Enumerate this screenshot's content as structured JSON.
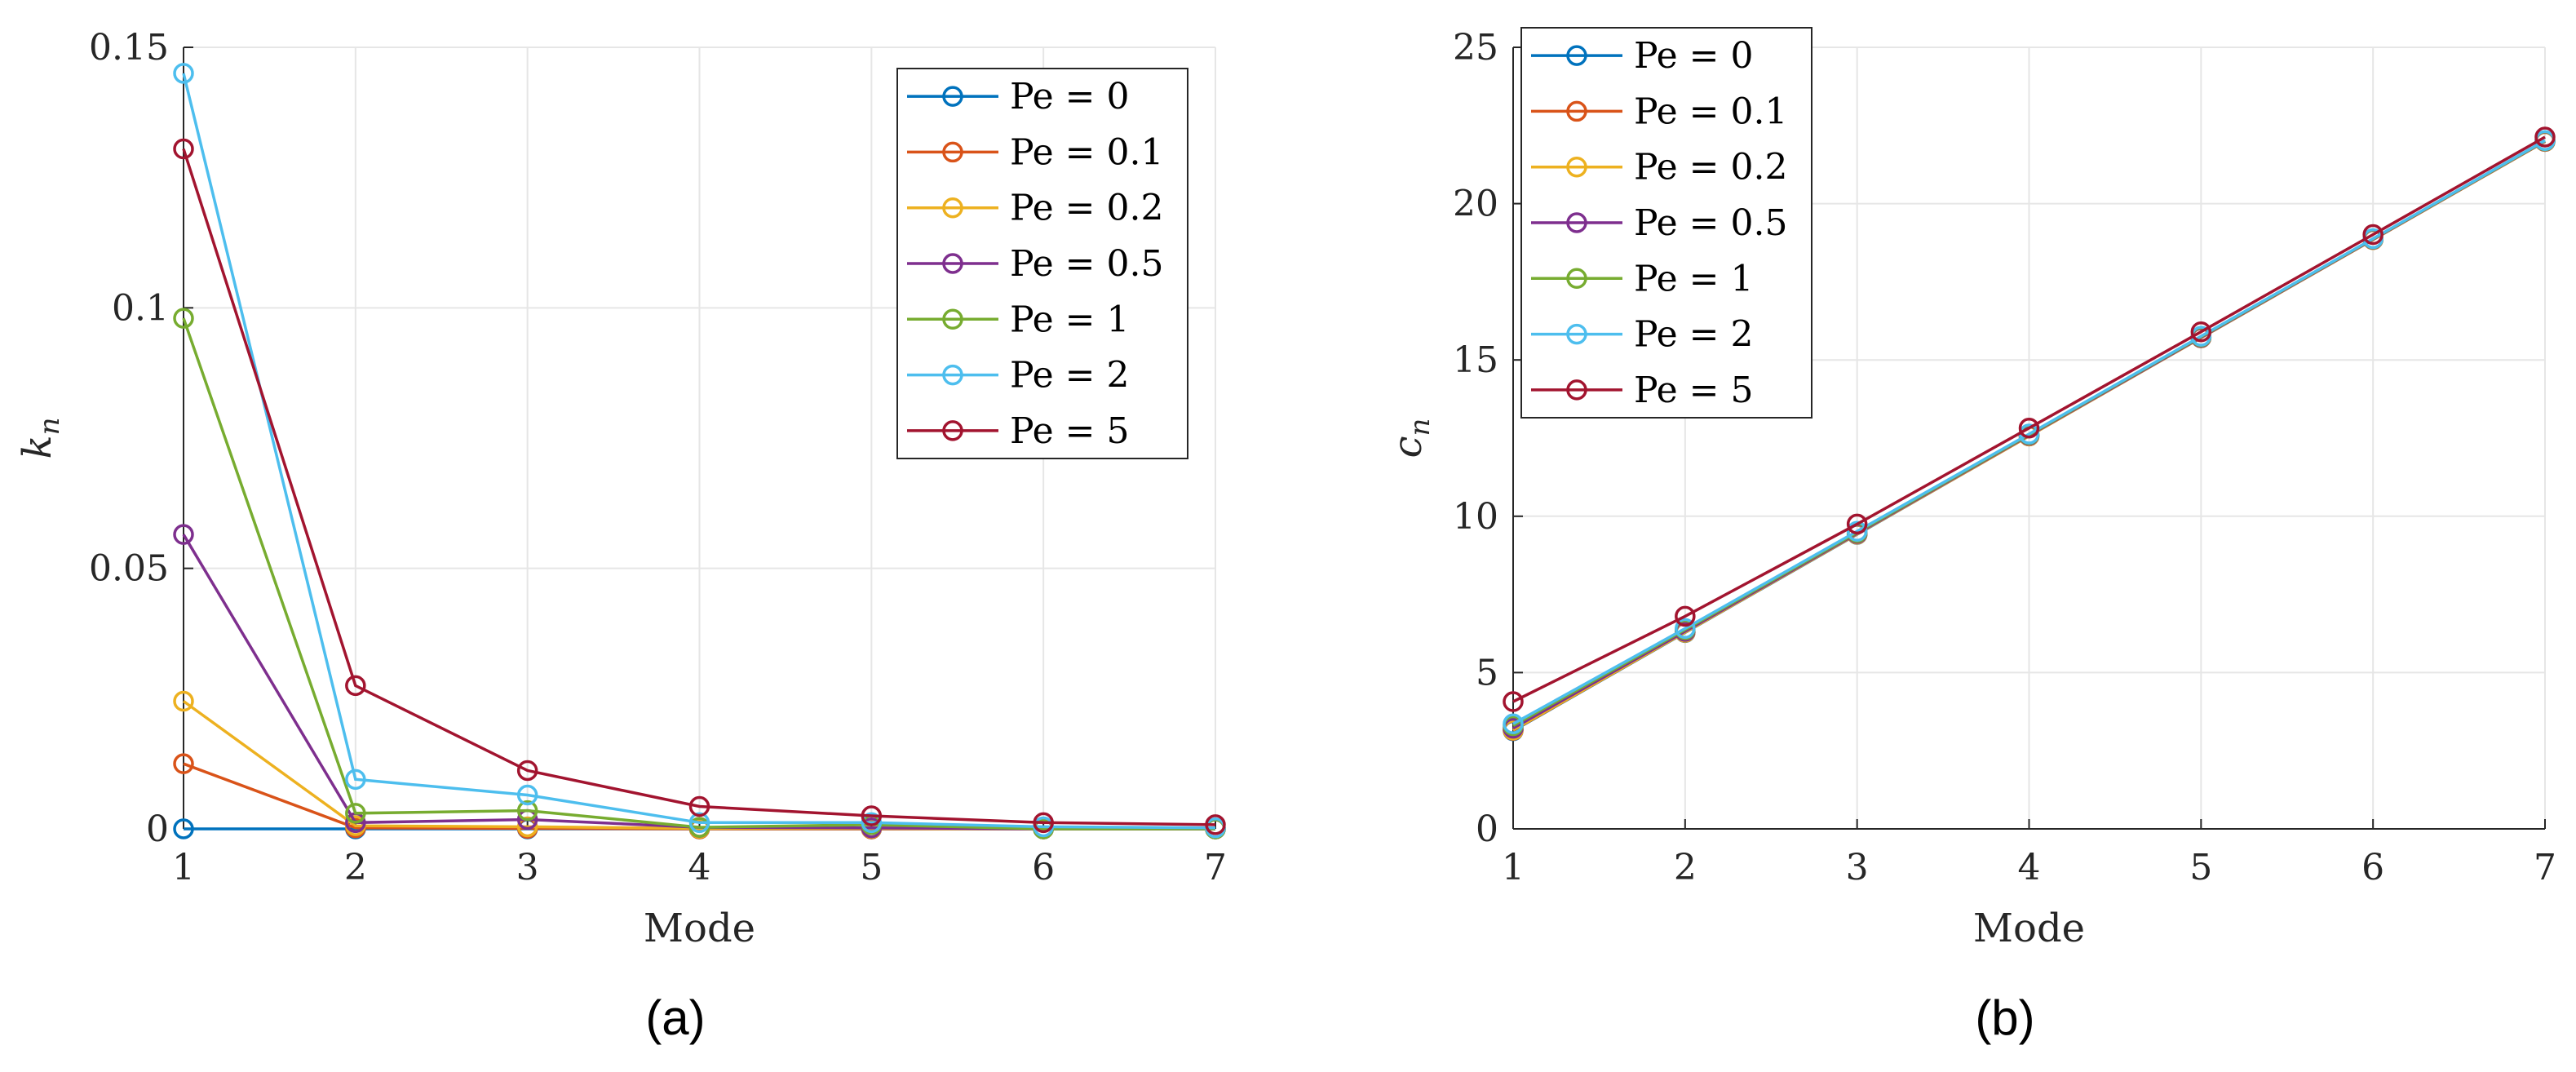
{
  "chart_data": [
    {
      "type": "line",
      "panel_label": "(a)",
      "xlabel": "Mode",
      "ylabel_var": "k",
      "ylabel_sub": "n",
      "x": [
        1,
        2,
        3,
        4,
        5,
        6,
        7
      ],
      "xlim": [
        1,
        7
      ],
      "ylim": [
        0,
        0.15
      ],
      "xticks": [
        1,
        2,
        3,
        4,
        5,
        6,
        7
      ],
      "yticks": [
        0,
        0.05,
        0.1,
        0.15
      ],
      "ytick_labels": [
        "0",
        "0.05",
        "0.1",
        "0.15"
      ],
      "grid": true,
      "legend_position": "top-right",
      "series": [
        {
          "name": "Pe = 0",
          "color": "#0072BD",
          "values": [
            0,
            0,
            0,
            0,
            0,
            0,
            0
          ]
        },
        {
          "name": "Pe = 0.1",
          "color": "#D95319",
          "values": [
            0.0125,
            0.0002,
            0.0001,
            0,
            0,
            0,
            0
          ]
        },
        {
          "name": "Pe = 0.2",
          "color": "#EDB120",
          "values": [
            0.0245,
            0.0006,
            0.0004,
            0.0001,
            0.0001,
            0,
            0
          ]
        },
        {
          "name": "Pe = 0.5",
          "color": "#7E2F8E",
          "values": [
            0.0565,
            0.0012,
            0.0018,
            0.0003,
            0.0002,
            0,
            0
          ]
        },
        {
          "name": "Pe = 1",
          "color": "#77AC30",
          "values": [
            0.098,
            0.003,
            0.0035,
            0.0003,
            0.0008,
            0,
            0
          ]
        },
        {
          "name": "Pe = 2",
          "color": "#4DBEEE",
          "values": [
            0.145,
            0.0095,
            0.0065,
            0.0012,
            0.0012,
            0.0004,
            0.0002
          ]
        },
        {
          "name": "Pe = 5",
          "color": "#A2142F",
          "values": [
            0.1305,
            0.0275,
            0.0112,
            0.0043,
            0.0025,
            0.0012,
            0.0008
          ]
        }
      ]
    },
    {
      "type": "line",
      "panel_label": "(b)",
      "xlabel": "Mode",
      "ylabel_var": "c",
      "ylabel_sub": "n",
      "x": [
        1,
        2,
        3,
        4,
        5,
        6,
        7
      ],
      "xlim": [
        1,
        7
      ],
      "ylim": [
        0,
        25
      ],
      "xticks": [
        1,
        2,
        3,
        4,
        5,
        6,
        7
      ],
      "yticks": [
        0,
        5,
        10,
        15,
        20,
        25
      ],
      "ytick_labels": [
        "0",
        "5",
        "10",
        "15",
        "20",
        "25"
      ],
      "grid": true,
      "legend_position": "top-left",
      "series": [
        {
          "name": "Pe = 0",
          "color": "#0072BD",
          "values": [
            3.14,
            6.28,
            9.42,
            12.57,
            15.71,
            18.85,
            21.99
          ]
        },
        {
          "name": "Pe = 0.1",
          "color": "#D95319",
          "values": [
            3.15,
            6.29,
            9.43,
            12.57,
            15.71,
            18.85,
            21.99
          ]
        },
        {
          "name": "Pe = 0.2",
          "color": "#EDB120",
          "values": [
            3.16,
            6.29,
            9.43,
            12.57,
            15.71,
            18.85,
            21.99
          ]
        },
        {
          "name": "Pe = 0.5",
          "color": "#7E2F8E",
          "values": [
            3.22,
            6.32,
            9.45,
            12.59,
            15.72,
            18.86,
            22.0
          ]
        },
        {
          "name": "Pe = 1",
          "color": "#77AC30",
          "values": [
            3.3,
            6.37,
            9.48,
            12.61,
            15.74,
            18.87,
            22.01
          ]
        },
        {
          "name": "Pe = 2",
          "color": "#4DBEEE",
          "values": [
            3.36,
            6.41,
            9.52,
            12.63,
            15.76,
            18.88,
            22.02
          ]
        },
        {
          "name": "Pe = 5",
          "color": "#A2142F",
          "values": [
            4.07,
            6.8,
            9.75,
            12.82,
            15.9,
            19.01,
            22.13
          ]
        }
      ]
    }
  ]
}
